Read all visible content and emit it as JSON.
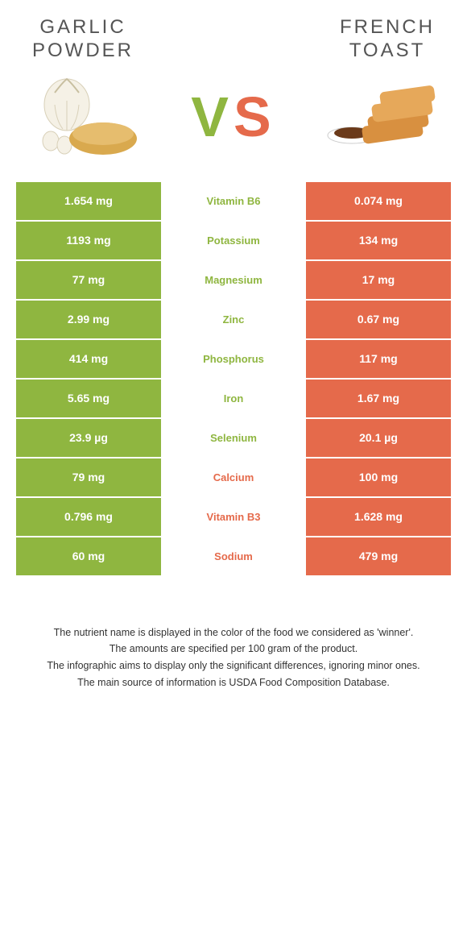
{
  "foods": {
    "left": {
      "name": "GARLIC\nPOWDER",
      "color": "#8fb640"
    },
    "right": {
      "name": "FRENCH\nTOAST",
      "color": "#e56a4b"
    }
  },
  "vs": {
    "v": "V",
    "s": "S"
  },
  "rows": [
    {
      "nutrient": "Vitamin B6",
      "left": "1.654 mg",
      "right": "0.074 mg",
      "winner": "left"
    },
    {
      "nutrient": "Potassium",
      "left": "1193 mg",
      "right": "134 mg",
      "winner": "left"
    },
    {
      "nutrient": "Magnesium",
      "left": "77 mg",
      "right": "17 mg",
      "winner": "left"
    },
    {
      "nutrient": "Zinc",
      "left": "2.99 mg",
      "right": "0.67 mg",
      "winner": "left"
    },
    {
      "nutrient": "Phosphorus",
      "left": "414 mg",
      "right": "117 mg",
      "winner": "left"
    },
    {
      "nutrient": "Iron",
      "left": "5.65 mg",
      "right": "1.67 mg",
      "winner": "left"
    },
    {
      "nutrient": "Selenium",
      "left": "23.9 µg",
      "right": "20.1 µg",
      "winner": "left"
    },
    {
      "nutrient": "Calcium",
      "left": "79 mg",
      "right": "100 mg",
      "winner": "right"
    },
    {
      "nutrient": "Vitamin B3",
      "left": "0.796 mg",
      "right": "1.628 mg",
      "winner": "right"
    },
    {
      "nutrient": "Sodium",
      "left": "60 mg",
      "right": "479 mg",
      "winner": "right"
    }
  ],
  "footnotes": [
    "The nutrient name is displayed in the color of the food we considered as 'winner'.",
    "The amounts are specified per 100 gram of the product.",
    "The infographic aims to display only the significant differences, ignoring minor ones.",
    "The main source of information is USDA Food Composition Database."
  ]
}
